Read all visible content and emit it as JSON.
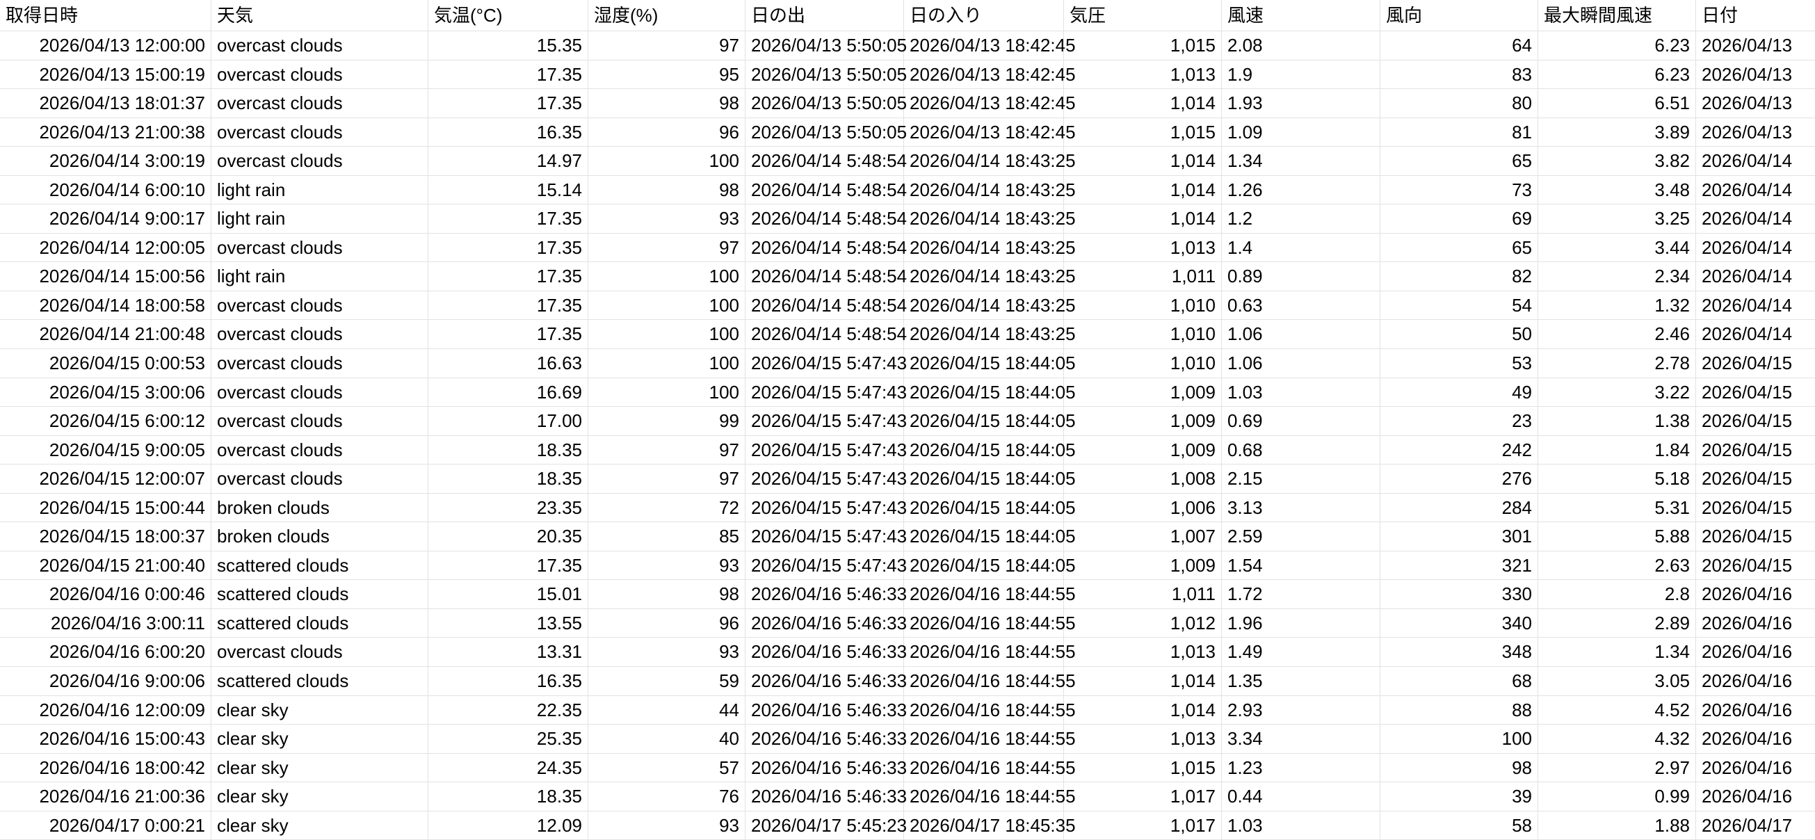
{
  "app": {
    "description_label": "weather data spreadsheet"
  },
  "colors": {
    "background": "#ffffff",
    "gridline": "#e2e2e2",
    "text": "#000000"
  },
  "table": {
    "columns": [
      {
        "key": "acquired_at",
        "label": "取得日時",
        "align": "right"
      },
      {
        "key": "weather",
        "label": "天気",
        "align": "left"
      },
      {
        "key": "temperature_c",
        "label": "気温(°C)",
        "align": "right"
      },
      {
        "key": "humidity_pct",
        "label": "湿度(%)",
        "align": "right"
      },
      {
        "key": "sunrise",
        "label": "日の出",
        "align": "left"
      },
      {
        "key": "sunset",
        "label": "日の入り",
        "align": "left"
      },
      {
        "key": "pressure",
        "label": "気圧",
        "align": "right"
      },
      {
        "key": "wind_speed",
        "label": "風速",
        "align": "left"
      },
      {
        "key": "wind_direction",
        "label": "風向",
        "align": "right"
      },
      {
        "key": "max_gust",
        "label": "最大瞬間風速",
        "align": "right"
      },
      {
        "key": "date",
        "label": "日付",
        "align": "left"
      }
    ],
    "rows": [
      [
        "2026/04/13 12:00:00",
        "overcast clouds",
        "15.35",
        "97",
        "2026/04/13 5:50:05",
        "2026/04/13 18:42:45",
        "1,015",
        "2.08",
        "64",
        "6.23",
        "2026/04/13"
      ],
      [
        "2026/04/13 15:00:19",
        "overcast clouds",
        "17.35",
        "95",
        "2026/04/13 5:50:05",
        "2026/04/13 18:42:45",
        "1,013",
        "1.9",
        "83",
        "6.23",
        "2026/04/13"
      ],
      [
        "2026/04/13 18:01:37",
        "overcast clouds",
        "17.35",
        "98",
        "2026/04/13 5:50:05",
        "2026/04/13 18:42:45",
        "1,014",
        "1.93",
        "80",
        "6.51",
        "2026/04/13"
      ],
      [
        "2026/04/13 21:00:38",
        "overcast clouds",
        "16.35",
        "96",
        "2026/04/13 5:50:05",
        "2026/04/13 18:42:45",
        "1,015",
        "1.09",
        "81",
        "3.89",
        "2026/04/13"
      ],
      [
        "2026/04/14 3:00:19",
        "overcast clouds",
        "14.97",
        "100",
        "2026/04/14 5:48:54",
        "2026/04/14 18:43:25",
        "1,014",
        "1.34",
        "65",
        "3.82",
        "2026/04/14"
      ],
      [
        "2026/04/14 6:00:10",
        "light rain",
        "15.14",
        "98",
        "2026/04/14 5:48:54",
        "2026/04/14 18:43:25",
        "1,014",
        "1.26",
        "73",
        "3.48",
        "2026/04/14"
      ],
      [
        "2026/04/14 9:00:17",
        "light rain",
        "17.35",
        "93",
        "2026/04/14 5:48:54",
        "2026/04/14 18:43:25",
        "1,014",
        "1.2",
        "69",
        "3.25",
        "2026/04/14"
      ],
      [
        "2026/04/14 12:00:05",
        "overcast clouds",
        "17.35",
        "97",
        "2026/04/14 5:48:54",
        "2026/04/14 18:43:25",
        "1,013",
        "1.4",
        "65",
        "3.44",
        "2026/04/14"
      ],
      [
        "2026/04/14 15:00:56",
        "light rain",
        "17.35",
        "100",
        "2026/04/14 5:48:54",
        "2026/04/14 18:43:25",
        "1,011",
        "0.89",
        "82",
        "2.34",
        "2026/04/14"
      ],
      [
        "2026/04/14 18:00:58",
        "overcast clouds",
        "17.35",
        "100",
        "2026/04/14 5:48:54",
        "2026/04/14 18:43:25",
        "1,010",
        "0.63",
        "54",
        "1.32",
        "2026/04/14"
      ],
      [
        "2026/04/14 21:00:48",
        "overcast clouds",
        "17.35",
        "100",
        "2026/04/14 5:48:54",
        "2026/04/14 18:43:25",
        "1,010",
        "1.06",
        "50",
        "2.46",
        "2026/04/14"
      ],
      [
        "2026/04/15 0:00:53",
        "overcast clouds",
        "16.63",
        "100",
        "2026/04/15 5:47:43",
        "2026/04/15 18:44:05",
        "1,010",
        "1.06",
        "53",
        "2.78",
        "2026/04/15"
      ],
      [
        "2026/04/15 3:00:06",
        "overcast clouds",
        "16.69",
        "100",
        "2026/04/15 5:47:43",
        "2026/04/15 18:44:05",
        "1,009",
        "1.03",
        "49",
        "3.22",
        "2026/04/15"
      ],
      [
        "2026/04/15 6:00:12",
        "overcast clouds",
        "17.00",
        "99",
        "2026/04/15 5:47:43",
        "2026/04/15 18:44:05",
        "1,009",
        "0.69",
        "23",
        "1.38",
        "2026/04/15"
      ],
      [
        "2026/04/15 9:00:05",
        "overcast clouds",
        "18.35",
        "97",
        "2026/04/15 5:47:43",
        "2026/04/15 18:44:05",
        "1,009",
        "0.68",
        "242",
        "1.84",
        "2026/04/15"
      ],
      [
        "2026/04/15 12:00:07",
        "overcast clouds",
        "18.35",
        "97",
        "2026/04/15 5:47:43",
        "2026/04/15 18:44:05",
        "1,008",
        "2.15",
        "276",
        "5.18",
        "2026/04/15"
      ],
      [
        "2026/04/15 15:00:44",
        "broken clouds",
        "23.35",
        "72",
        "2026/04/15 5:47:43",
        "2026/04/15 18:44:05",
        "1,006",
        "3.13",
        "284",
        "5.31",
        "2026/04/15"
      ],
      [
        "2026/04/15 18:00:37",
        "broken clouds",
        "20.35",
        "85",
        "2026/04/15 5:47:43",
        "2026/04/15 18:44:05",
        "1,007",
        "2.59",
        "301",
        "5.88",
        "2026/04/15"
      ],
      [
        "2026/04/15 21:00:40",
        "scattered clouds",
        "17.35",
        "93",
        "2026/04/15 5:47:43",
        "2026/04/15 18:44:05",
        "1,009",
        "1.54",
        "321",
        "2.63",
        "2026/04/15"
      ],
      [
        "2026/04/16 0:00:46",
        "scattered clouds",
        "15.01",
        "98",
        "2026/04/16 5:46:33",
        "2026/04/16 18:44:55",
        "1,011",
        "1.72",
        "330",
        "2.8",
        "2026/04/16"
      ],
      [
        "2026/04/16 3:00:11",
        "scattered clouds",
        "13.55",
        "96",
        "2026/04/16 5:46:33",
        "2026/04/16 18:44:55",
        "1,012",
        "1.96",
        "340",
        "2.89",
        "2026/04/16"
      ],
      [
        "2026/04/16 6:00:20",
        "overcast clouds",
        "13.31",
        "93",
        "2026/04/16 5:46:33",
        "2026/04/16 18:44:55",
        "1,013",
        "1.49",
        "348",
        "1.34",
        "2026/04/16"
      ],
      [
        "2026/04/16 9:00:06",
        "scattered clouds",
        "16.35",
        "59",
        "2026/04/16 5:46:33",
        "2026/04/16 18:44:55",
        "1,014",
        "1.35",
        "68",
        "3.05",
        "2026/04/16"
      ],
      [
        "2026/04/16 12:00:09",
        "clear sky",
        "22.35",
        "44",
        "2026/04/16 5:46:33",
        "2026/04/16 18:44:55",
        "1,014",
        "2.93",
        "88",
        "4.52",
        "2026/04/16"
      ],
      [
        "2026/04/16 15:00:43",
        "clear sky",
        "25.35",
        "40",
        "2026/04/16 5:46:33",
        "2026/04/16 18:44:55",
        "1,013",
        "3.34",
        "100",
        "4.32",
        "2026/04/16"
      ],
      [
        "2026/04/16 18:00:42",
        "clear sky",
        "24.35",
        "57",
        "2026/04/16 5:46:33",
        "2026/04/16 18:44:55",
        "1,015",
        "1.23",
        "98",
        "2.97",
        "2026/04/16"
      ],
      [
        "2026/04/16 21:00:36",
        "clear sky",
        "18.35",
        "76",
        "2026/04/16 5:46:33",
        "2026/04/16 18:44:55",
        "1,017",
        "0.44",
        "39",
        "0.99",
        "2026/04/16"
      ],
      [
        "2026/04/17 0:00:21",
        "clear sky",
        "12.09",
        "93",
        "2026/04/17 5:45:23",
        "2026/04/17 18:45:35",
        "1,017",
        "1.03",
        "58",
        "1.88",
        "2026/04/17"
      ]
    ]
  }
}
